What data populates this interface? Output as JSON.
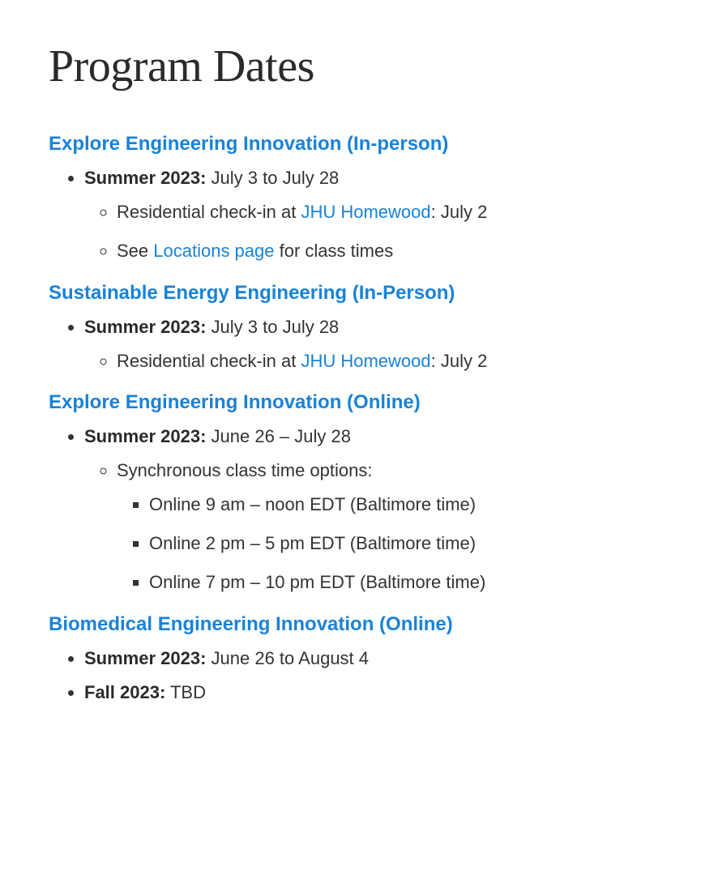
{
  "title": "Program Dates",
  "programs": [
    {
      "name": "Explore Engineering Innovation (In-person)",
      "sessions": [
        {
          "label": "Summer 2023:",
          "dates": " July 3 to July 28",
          "sub": [
            {
              "prefix": "Residential check-in at ",
              "link": "JHU Homewood",
              "suffix": ": July 2"
            },
            {
              "prefix": "See ",
              "link": "Locations page",
              "suffix": " for class times"
            }
          ]
        }
      ]
    },
    {
      "name": "Sustainable Energy Engineering (In-Person)",
      "sessions": [
        {
          "label": "Summer 2023:",
          "dates": " July 3 to July 28",
          "sub": [
            {
              "prefix": "Residential check-in at ",
              "link": "JHU Homewood",
              "suffix": ": July 2"
            }
          ]
        }
      ]
    },
    {
      "name": "Explore Engineering Innovation (Online)",
      "sessions": [
        {
          "label": "Summer 2023:",
          "dates": " June 26 – July 28",
          "sub": [
            {
              "prefix": "Synchronous class time options:",
              "options": [
                "Online 9 am – noon EDT (Baltimore time)",
                "Online 2 pm – 5 pm EDT (Baltimore time)",
                "Online 7 pm – 10 pm EDT (Baltimore time)"
              ]
            }
          ]
        }
      ]
    },
    {
      "name": "Biomedical Engineering Innovation (Online)",
      "sessions": [
        {
          "label": "Summer 2023:",
          "dates": "  June 26 to August 4"
        },
        {
          "label": "Fall 2023:",
          "dates": "  TBD"
        }
      ]
    }
  ]
}
